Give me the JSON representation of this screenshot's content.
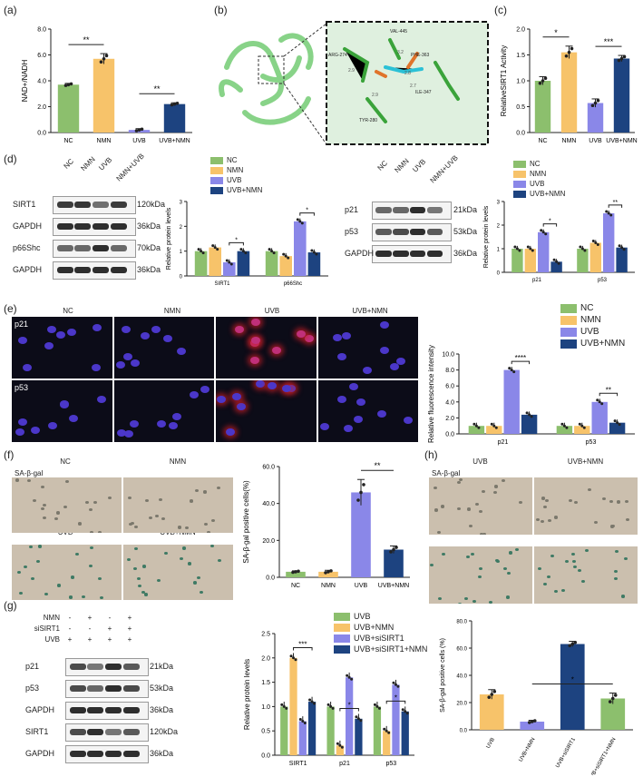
{
  "colors": {
    "nc": "#8cbf6d",
    "nmn": "#f7c36a",
    "uvb": "#8a87e8",
    "uvb_nmn": "#1d4380"
  },
  "panels": {
    "a": {
      "label": "(a)"
    },
    "b": {
      "label": "(b)"
    },
    "c": {
      "label": "(c)"
    },
    "d": {
      "label": "(d)"
    },
    "e": {
      "label": "(e)"
    },
    "f": {
      "label": "(f)"
    },
    "g": {
      "label": "(g)"
    },
    "h": {
      "label": "(h)"
    }
  },
  "structure": {
    "residues": [
      "VAL-445",
      "ARG-274",
      "PHE-363",
      "ILE-347",
      "TYR-280"
    ],
    "distances": [
      "3.2",
      "2.9",
      "2.8",
      "2.7",
      "2.9"
    ]
  },
  "blots": {
    "d1": {
      "lanes": [
        "NC",
        "NMN",
        "UVB",
        "NMN+UVB"
      ],
      "rows": [
        {
          "name": "SIRT1",
          "kda": "120kDa"
        },
        {
          "name": "GAPDH",
          "kda": "36kDa"
        },
        {
          "name": "p66Shc",
          "kda": "70kDa"
        },
        {
          "name": "GAPDH",
          "kda": "36kDa"
        }
      ]
    },
    "d2": {
      "lanes": [
        "NC",
        "NMN",
        "UVB",
        "NMN+UVB"
      ],
      "rows": [
        {
          "name": "p21",
          "kda": "21kDa"
        },
        {
          "name": "p53",
          "kda": "53kDa"
        },
        {
          "name": "GAPDH",
          "kda": "36kDa"
        }
      ]
    },
    "g": {
      "conditions": [
        {
          "name": "NMN",
          "marks": [
            "-",
            "+",
            "-",
            "+"
          ]
        },
        {
          "name": "siSIRT1",
          "marks": [
            "-",
            "-",
            "+",
            "+"
          ]
        },
        {
          "name": "UVB",
          "marks": [
            "+",
            "+",
            "+",
            "+"
          ]
        }
      ],
      "rows": [
        {
          "name": "p21",
          "kda": "21kDa"
        },
        {
          "name": "p53",
          "kda": "53kDa"
        },
        {
          "name": "GAPDH",
          "kda": "36kDa"
        },
        {
          "name": "SIRT1",
          "kda": "120kDa"
        },
        {
          "name": "GAPDH",
          "kda": "36kDa"
        }
      ]
    }
  },
  "micro_e": {
    "columns": [
      "NC",
      "NMN",
      "UVB",
      "UVB+NMN"
    ],
    "rows": [
      "p21",
      "p53"
    ]
  },
  "micro_f": {
    "labels": [
      "NC",
      "NMN",
      "UVB",
      "UVB+NMN"
    ],
    "stain": "SA-β-gal"
  },
  "micro_h": {
    "labels": [
      "UVB",
      "UVB+NMN",
      "UVB+siSIRT1",
      "UVB+NMN+siSIRT1"
    ],
    "stain": "SA-β-gal"
  },
  "chart_data": [
    {
      "id": "a",
      "type": "bar",
      "ylabel": "NAD+/NADH",
      "categories": [
        "NC",
        "NMN",
        "UVB",
        "UVB+NMN"
      ],
      "values": [
        3.7,
        5.7,
        0.2,
        2.2
      ],
      "errors": [
        0.1,
        0.4,
        0.1,
        0.1
      ],
      "ylim": [
        0,
        8
      ],
      "yticks": [
        "0.0",
        "2.0",
        "4.0",
        "6.0",
        "8.0"
      ],
      "sig": [
        {
          "from": 0,
          "to": 1,
          "label": "**"
        },
        {
          "from": 2,
          "to": 3,
          "label": "**"
        }
      ]
    },
    {
      "id": "c",
      "type": "bar",
      "ylabel": "RelativeSIRT1 Activity",
      "categories": [
        "NC",
        "NMN",
        "UVB",
        "UVB+NMN"
      ],
      "values": [
        1.0,
        1.55,
        0.57,
        1.43
      ],
      "errors": [
        0.08,
        0.12,
        0.08,
        0.06
      ],
      "ylim": [
        0,
        2
      ],
      "yticks": [
        "0.0",
        "0.5",
        "1.0",
        "1.5",
        "2.0"
      ],
      "sig": [
        {
          "from": 0,
          "to": 1,
          "label": "*"
        },
        {
          "from": 2,
          "to": 3,
          "label": "***"
        }
      ]
    },
    {
      "id": "d1",
      "type": "bar",
      "ylabel": "Relative protein levels",
      "categories": [
        "SIRT1",
        "p66Shc"
      ],
      "legend": [
        "NC",
        "NMN",
        "UVB",
        "UVB+NMN"
      ],
      "series": [
        {
          "name": "NC",
          "values": [
            1.0,
            1.0
          ]
        },
        {
          "name": "NMN",
          "values": [
            1.15,
            0.8
          ]
        },
        {
          "name": "UVB",
          "values": [
            0.55,
            2.2
          ]
        },
        {
          "name": "UVB+NMN",
          "values": [
            1.0,
            0.95
          ]
        }
      ],
      "ylim": [
        0,
        3
      ],
      "yticks": [
        "0",
        "1",
        "2",
        "3"
      ],
      "sig": [
        {
          "group": 0,
          "from": 2,
          "to": 3,
          "label": "*"
        },
        {
          "group": 1,
          "from": 2,
          "to": 3,
          "label": "*"
        }
      ]
    },
    {
      "id": "d2",
      "type": "bar",
      "ylabel": "Relative protein levels",
      "categories": [
        "p21",
        "p53"
      ],
      "legend": [
        "NC",
        "NMN",
        "UVB",
        "UVB+NMN"
      ],
      "series": [
        {
          "name": "NC",
          "values": [
            1.0,
            1.0
          ]
        },
        {
          "name": "NMN",
          "values": [
            1.0,
            1.25
          ]
        },
        {
          "name": "UVB",
          "values": [
            1.7,
            2.5
          ]
        },
        {
          "name": "UVB+NMN",
          "values": [
            0.45,
            1.05
          ]
        }
      ],
      "ylim": [
        0,
        3
      ],
      "yticks": [
        "0",
        "1",
        "2",
        "3"
      ],
      "sig": [
        {
          "group": 0,
          "from": 2,
          "to": 3,
          "label": "*"
        },
        {
          "group": 1,
          "from": 2,
          "to": 3,
          "label": "**"
        }
      ]
    },
    {
      "id": "e",
      "type": "bar",
      "ylabel": "Relative fluorescence intensity",
      "categories": [
        "p21",
        "p53"
      ],
      "legend": [
        "NC",
        "NMN",
        "UVB",
        "UVB+NMN"
      ],
      "series": [
        {
          "name": "NC",
          "values": [
            1.0,
            1.0
          ]
        },
        {
          "name": "NMN",
          "values": [
            1.0,
            1.0
          ]
        },
        {
          "name": "UVB",
          "values": [
            8.0,
            4.0
          ]
        },
        {
          "name": "UVB+NMN",
          "values": [
            2.4,
            1.4
          ]
        }
      ],
      "ylim": [
        0,
        10
      ],
      "yticks": [
        "0.0",
        "2.0",
        "4.0",
        "6.0",
        "8.0",
        "10.0"
      ],
      "sig": [
        {
          "group": 0,
          "from": 2,
          "to": 3,
          "label": "****"
        },
        {
          "group": 1,
          "from": 2,
          "to": 3,
          "label": "**"
        }
      ]
    },
    {
      "id": "f",
      "type": "bar",
      "ylabel": "SA-β-gal positive cells(%)",
      "categories": [
        "NC",
        "NMN",
        "UVB",
        "UVB+NMN"
      ],
      "values": [
        3,
        3,
        46,
        15
      ],
      "errors": [
        0.5,
        0.8,
        7,
        2
      ],
      "ylim": [
        0,
        60
      ],
      "yticks": [
        "0.0",
        "20.0",
        "40.0",
        "60.0"
      ],
      "sig": [
        {
          "from": 2,
          "to": 3,
          "label": "**"
        }
      ]
    },
    {
      "id": "g",
      "type": "bar",
      "ylabel": "Relative protein levels",
      "categories": [
        "SIRT1",
        "p21",
        "p53"
      ],
      "legend": [
        "UVB",
        "UVB+NMN",
        "UVB+siSIRT1",
        "UVB+siSIRT1+NMN"
      ],
      "series": [
        {
          "name": "UVB",
          "values": [
            1.0,
            1.0,
            1.0
          ]
        },
        {
          "name": "UVB+NMN",
          "values": [
            2.0,
            0.2,
            0.5
          ]
        },
        {
          "name": "UVB+siSIRT1",
          "values": [
            0.7,
            1.6,
            1.45
          ]
        },
        {
          "name": "UVB+siSIRT1+NMN",
          "values": [
            1.1,
            0.75,
            0.9
          ]
        }
      ],
      "ylim": [
        0,
        2.5
      ],
      "yticks": [
        "0.0",
        "0.5",
        "1.0",
        "1.5",
        "2.0",
        "2.5"
      ],
      "sig": [
        {
          "group": 0,
          "from": 1,
          "to": 3,
          "label": "***"
        },
        {
          "group": 1,
          "from": 1,
          "to": 3,
          "label": "*"
        },
        {
          "group": 2,
          "from": 1,
          "to": 3,
          "label": "*"
        }
      ]
    },
    {
      "id": "h",
      "type": "bar",
      "ylabel": "SA-β-gal positive cells (%)",
      "categories": [
        "UVB",
        "UVB+NMN",
        "UVB+siSIRT1",
        "UVB+siSIRT1+NMN"
      ],
      "values": [
        26,
        6,
        63,
        23
      ],
      "errors": [
        3.5,
        1,
        2,
        4
      ],
      "ylim": [
        0,
        80
      ],
      "yticks": [
        "0.0",
        "20.0",
        "40.0",
        "60.0",
        "80.0"
      ],
      "sig": [
        {
          "from": 1,
          "to": 3,
          "label": "*"
        }
      ]
    }
  ]
}
